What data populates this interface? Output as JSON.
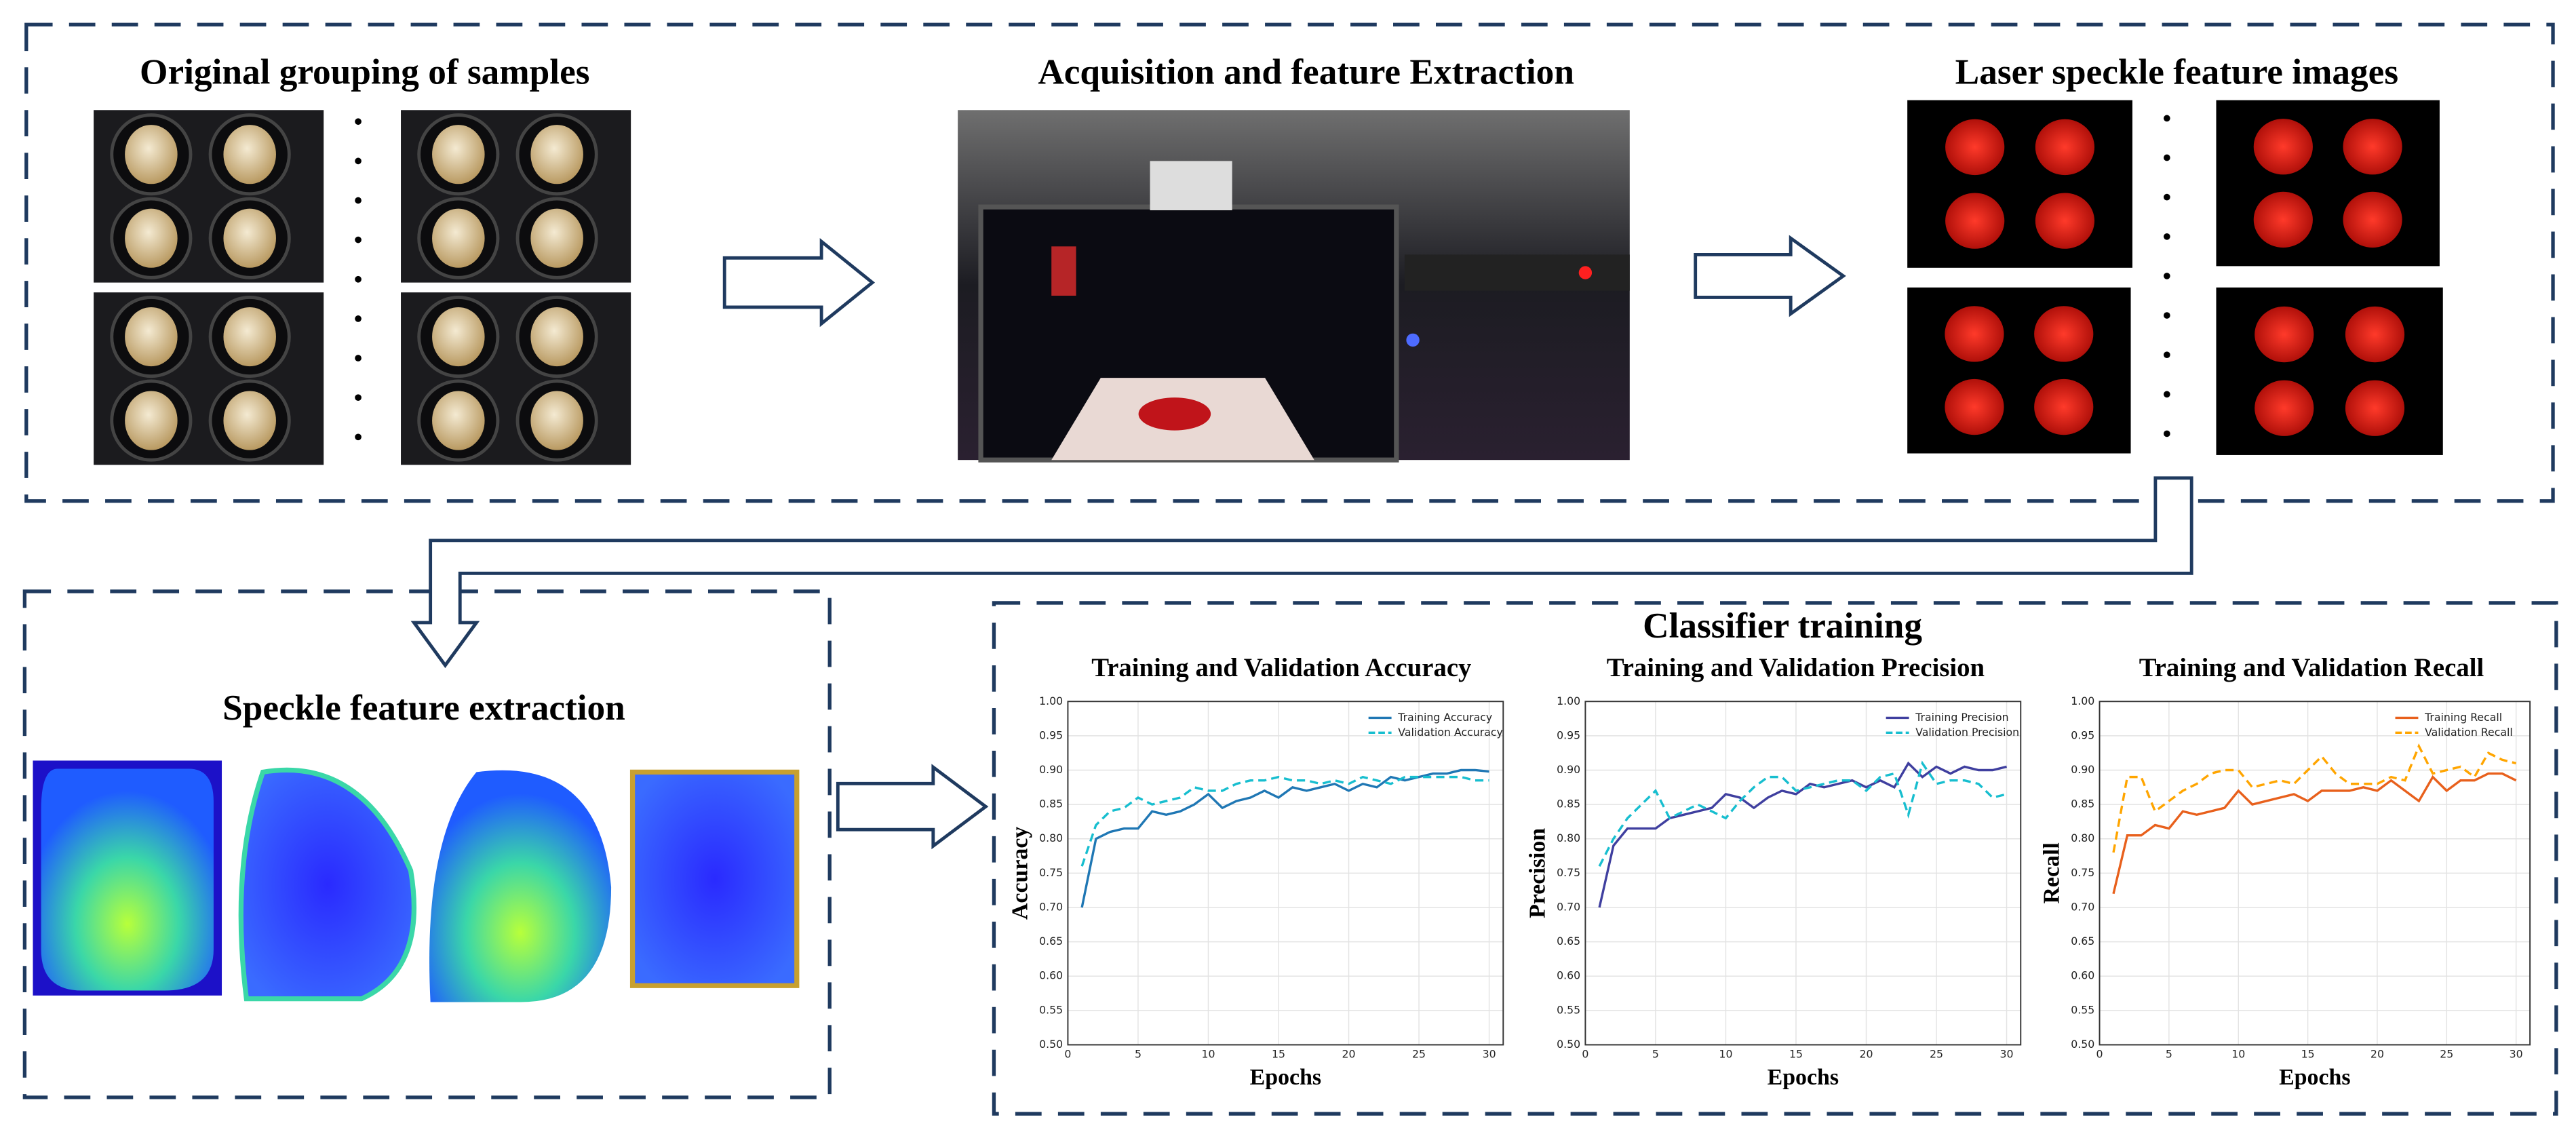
{
  "panels": {
    "grouping": {
      "title": "Original grouping of samples"
    },
    "acquisition": {
      "title": "Acquisition and feature Extraction"
    },
    "speckle_images": {
      "title": "Laser speckle feature images"
    },
    "extraction": {
      "title": "Speckle feature extraction"
    },
    "training": {
      "title": "Classifier training"
    }
  },
  "chart_data": [
    {
      "type": "line",
      "title": "Training and Validation Accuracy",
      "x_label": "Epochs",
      "y_label": "Accuracy",
      "x": [
        1,
        2,
        3,
        4,
        5,
        6,
        7,
        8,
        9,
        10,
        11,
        12,
        13,
        14,
        15,
        16,
        17,
        18,
        19,
        20,
        21,
        22,
        23,
        24,
        25,
        26,
        27,
        28,
        29,
        30
      ],
      "series": [
        {
          "name": "Training Accuracy",
          "color": "#1f77b4",
          "dash": false,
          "values": [
            0.7,
            0.8,
            0.81,
            0.815,
            0.815,
            0.84,
            0.835,
            0.84,
            0.85,
            0.865,
            0.845,
            0.855,
            0.86,
            0.87,
            0.86,
            0.875,
            0.87,
            0.875,
            0.88,
            0.87,
            0.88,
            0.875,
            0.89,
            0.885,
            0.89,
            0.895,
            0.895,
            0.9,
            0.9,
            0.898
          ]
        },
        {
          "name": "Validation Accuracy",
          "color": "#17becf",
          "dash": true,
          "values": [
            0.76,
            0.82,
            0.84,
            0.845,
            0.86,
            0.85,
            0.855,
            0.86,
            0.875,
            0.87,
            0.87,
            0.88,
            0.885,
            0.885,
            0.89,
            0.885,
            0.885,
            0.88,
            0.885,
            0.88,
            0.89,
            0.885,
            0.88,
            0.89,
            0.89,
            0.89,
            0.89,
            0.89,
            0.885,
            0.885
          ]
        }
      ],
      "xlim": [
        0,
        31
      ],
      "xticks": [
        0,
        5,
        10,
        15,
        20,
        25,
        30
      ],
      "ylim": [
        0.5,
        1.0
      ],
      "yticks": [
        {
          "value": 0.5,
          "label": "0.50"
        },
        0.55,
        {
          "value": 0.6,
          "label": "0.60"
        },
        0.65,
        {
          "value": 0.7,
          "label": "0.70"
        },
        0.75,
        {
          "value": 0.8,
          "label": "0.80"
        },
        0.85,
        {
          "value": 0.9,
          "label": "0.90"
        },
        0.95,
        {
          "value": 1.0,
          "label": "1.00"
        }
      ],
      "grid": true,
      "legend": "upper right"
    },
    {
      "type": "line",
      "title": "Training and Validation Precision",
      "x_label": "Epochs",
      "y_label": "Precision",
      "x": [
        1,
        2,
        3,
        4,
        5,
        6,
        7,
        8,
        9,
        10,
        11,
        12,
        13,
        14,
        15,
        16,
        17,
        18,
        19,
        20,
        21,
        22,
        23,
        24,
        25,
        26,
        27,
        28,
        29,
        30
      ],
      "series": [
        {
          "name": "Training Precision",
          "color": "#3f3f9f",
          "dash": false,
          "values": [
            0.7,
            0.79,
            0.815,
            0.815,
            0.815,
            0.83,
            0.835,
            0.84,
            0.845,
            0.865,
            0.86,
            0.845,
            0.86,
            0.87,
            0.865,
            0.88,
            0.875,
            0.88,
            0.885,
            0.875,
            0.885,
            0.875,
            0.91,
            0.89,
            0.905,
            0.895,
            0.905,
            0.9,
            0.9,
            0.905
          ]
        },
        {
          "name": "Validation Precision",
          "color": "#17becf",
          "dash": true,
          "values": [
            0.76,
            0.8,
            0.83,
            0.85,
            0.87,
            0.83,
            0.84,
            0.85,
            0.84,
            0.83,
            0.855,
            0.875,
            0.89,
            0.89,
            0.87,
            0.875,
            0.88,
            0.885,
            0.885,
            0.87,
            0.89,
            0.895,
            0.835,
            0.91,
            0.88,
            0.885,
            0.885,
            0.88,
            0.86,
            0.865
          ]
        }
      ],
      "xlim": [
        0,
        31
      ],
      "xticks": [
        0,
        5,
        10,
        15,
        20,
        25,
        30
      ],
      "ylim": [
        0.5,
        1.0
      ],
      "yticks": [
        {
          "value": 0.5,
          "label": "0.50"
        },
        0.55,
        {
          "value": 0.6,
          "label": "0.60"
        },
        0.65,
        {
          "value": 0.7,
          "label": "0.70"
        },
        0.75,
        {
          "value": 0.8,
          "label": "0.80"
        },
        0.85,
        {
          "value": 0.9,
          "label": "0.90"
        },
        0.95,
        {
          "value": 1.0,
          "label": "1.00"
        }
      ],
      "grid": true,
      "legend": "upper right"
    },
    {
      "type": "line",
      "title": "Training and Validation Recall",
      "x_label": "Epochs",
      "y_label": "Recall",
      "x": [
        1,
        2,
        3,
        4,
        5,
        6,
        7,
        8,
        9,
        10,
        11,
        12,
        13,
        14,
        15,
        16,
        17,
        18,
        19,
        20,
        21,
        22,
        23,
        24,
        25,
        26,
        27,
        28,
        29,
        30
      ],
      "series": [
        {
          "name": "Training Recall",
          "color": "#e8601c",
          "dash": false,
          "values": [
            0.72,
            0.805,
            0.805,
            0.82,
            0.815,
            0.84,
            0.835,
            0.84,
            0.845,
            0.87,
            0.85,
            0.855,
            0.86,
            0.865,
            0.855,
            0.87,
            0.87,
            0.87,
            0.875,
            0.87,
            0.885,
            0.87,
            0.855,
            0.89,
            0.87,
            0.885,
            0.885,
            0.895,
            0.895,
            0.885
          ]
        },
        {
          "name": "Validation Recall",
          "color": "#ffa500",
          "dash": true,
          "values": [
            0.78,
            0.89,
            0.89,
            0.84,
            0.855,
            0.87,
            0.88,
            0.895,
            0.9,
            0.9,
            0.875,
            0.88,
            0.885,
            0.88,
            0.9,
            0.92,
            0.895,
            0.88,
            0.88,
            0.88,
            0.89,
            0.885,
            0.935,
            0.895,
            0.9,
            0.905,
            0.89,
            0.925,
            0.915,
            0.91
          ]
        }
      ],
      "xlim": [
        0,
        31
      ],
      "xticks": [
        0,
        5,
        10,
        15,
        20,
        25,
        30
      ],
      "ylim": [
        0.5,
        1.0
      ],
      "yticks": [
        {
          "value": 0.5,
          "label": "0.50"
        },
        0.55,
        {
          "value": 0.6,
          "label": "0.60"
        },
        0.65,
        {
          "value": 0.7,
          "label": "0.70"
        },
        0.75,
        {
          "value": 0.8,
          "label": "0.80"
        },
        0.85,
        {
          "value": 0.9,
          "label": "0.90"
        },
        0.95,
        {
          "value": 1.0,
          "label": "1.00"
        }
      ],
      "grid": true,
      "legend": "upper right"
    }
  ]
}
